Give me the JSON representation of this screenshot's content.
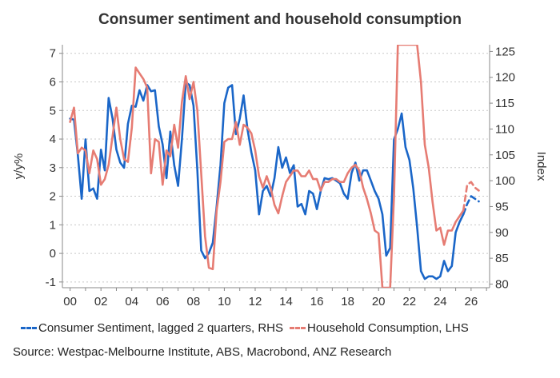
{
  "chart_data": {
    "type": "line",
    "title": "Consumer sentiment and household consumption",
    "ylabel_left": "y/y%",
    "ylabel_right": "Index",
    "ylim_left": [
      -1.2,
      7.3
    ],
    "ylim_right": [
      79.3,
      126.3
    ],
    "xlim": [
      1999.5,
      2027.2
    ],
    "left_ticks": [
      -1,
      0,
      1,
      2,
      3,
      4,
      5,
      6,
      7
    ],
    "right_ticks": [
      80,
      85,
      90,
      95,
      100,
      105,
      110,
      115,
      120,
      125
    ],
    "x_ticks": [
      2000,
      2002,
      2004,
      2006,
      2008,
      2010,
      2012,
      2014,
      2016,
      2018,
      2020,
      2022,
      2024,
      2026
    ],
    "x_tick_labels": [
      "00",
      "02",
      "04",
      "06",
      "08",
      "10",
      "12",
      "14",
      "16",
      "18",
      "20",
      "22",
      "24",
      "26"
    ],
    "grid": "horizontal-dotted",
    "legend_position": "bottom",
    "series": [
      {
        "name": "Consumer Sentiment, lagged 2 quarters, RHS",
        "axis": "right",
        "color": "#1a66c8",
        "x": [
          2000.0,
          2000.25,
          2000.5,
          2000.75,
          2001.0,
          2001.25,
          2001.5,
          2001.75,
          2002.0,
          2002.25,
          2002.5,
          2002.75,
          2003.0,
          2003.25,
          2003.5,
          2003.75,
          2004.0,
          2004.25,
          2004.5,
          2004.75,
          2005.0,
          2005.25,
          2005.5,
          2005.75,
          2006.0,
          2006.25,
          2006.5,
          2006.75,
          2007.0,
          2007.25,
          2007.5,
          2007.75,
          2008.0,
          2008.25,
          2008.5,
          2008.75,
          2009.0,
          2009.25,
          2009.5,
          2009.75,
          2010.0,
          2010.25,
          2010.5,
          2010.75,
          2011.0,
          2011.25,
          2011.5,
          2011.75,
          2012.0,
          2012.25,
          2012.5,
          2012.75,
          2013.0,
          2013.25,
          2013.5,
          2013.75,
          2014.0,
          2014.25,
          2014.5,
          2014.75,
          2015.0,
          2015.25,
          2015.5,
          2015.75,
          2016.0,
          2016.25,
          2016.5,
          2016.75,
          2017.0,
          2017.25,
          2017.5,
          2017.75,
          2018.0,
          2018.25,
          2018.5,
          2018.75,
          2019.0,
          2019.25,
          2019.5,
          2019.75,
          2020.0,
          2020.25,
          2020.5,
          2020.75,
          2021.0,
          2021.25,
          2021.5,
          2021.75,
          2022.0,
          2022.25,
          2022.5,
          2022.75,
          2023.0,
          2023.25,
          2023.5,
          2023.75,
          2024.0,
          2024.25,
          2024.5,
          2024.75,
          2025.0,
          2025.25,
          2025.5
        ],
        "values": [
          112,
          111.8,
          105,
          96.5,
          108,
          98,
          98.5,
          96.5,
          106,
          102,
          116,
          112,
          106,
          103.5,
          102.5,
          111,
          114.5,
          114.3,
          117.5,
          115.5,
          118.5,
          117.3,
          117.5,
          110.5,
          107,
          100.5,
          109.5,
          103,
          99,
          108,
          119,
          118.5,
          114.5,
          102,
          86.5,
          85,
          86,
          88,
          95,
          103,
          115,
          118,
          118.5,
          109,
          112,
          116.5,
          110,
          105.5,
          102,
          93.5,
          98,
          99,
          97,
          100.5,
          106.5,
          102.5,
          104.5,
          101.5,
          103,
          95,
          95.5,
          93.5,
          98,
          97.5,
          94.5,
          98,
          100.5,
          100.3,
          100.5,
          100,
          99.5,
          97.5,
          96.5,
          101.5,
          103.5,
          100,
          102,
          102,
          100,
          98,
          96.5,
          93.5,
          85.5,
          87,
          108,
          110,
          113,
          106.5,
          104,
          98.5,
          91,
          82.5,
          81,
          81.5,
          81.5,
          81,
          81.5,
          84.5,
          82.5,
          83.5,
          90,
          92,
          93.5
        ]
      },
      {
        "name": "Consumer Sentiment, lagged 2 quarters, RHS",
        "axis": "right",
        "color": "#1a66c8",
        "dashed": true,
        "x": [
          2025.5,
          2025.75,
          2026.0,
          2026.25,
          2026.5
        ],
        "values": [
          93.5,
          95.5,
          97,
          96.5,
          96
        ]
      },
      {
        "name": "Household Consumption, LHS",
        "axis": "left",
        "color": "#e67c73",
        "x": [
          2000.0,
          2000.25,
          2000.5,
          2000.75,
          2001.0,
          2001.25,
          2001.5,
          2001.75,
          2002.0,
          2002.25,
          2002.5,
          2002.75,
          2003.0,
          2003.25,
          2003.5,
          2003.75,
          2004.0,
          2004.25,
          2004.5,
          2004.75,
          2005.0,
          2005.25,
          2005.5,
          2005.75,
          2006.0,
          2006.25,
          2006.5,
          2006.75,
          2007.0,
          2007.25,
          2007.5,
          2007.75,
          2008.0,
          2008.25,
          2008.5,
          2008.75,
          2009.0,
          2009.25,
          2009.5,
          2009.75,
          2010.0,
          2010.25,
          2010.5,
          2010.75,
          2011.0,
          2011.25,
          2011.5,
          2011.75,
          2012.0,
          2012.25,
          2012.5,
          2012.75,
          2013.0,
          2013.25,
          2013.5,
          2013.75,
          2014.0,
          2014.25,
          2014.5,
          2014.75,
          2015.0,
          2015.25,
          2015.5,
          2015.75,
          2016.0,
          2016.25,
          2016.5,
          2016.75,
          2017.0,
          2017.25,
          2017.5,
          2017.75,
          2018.0,
          2018.25,
          2018.5,
          2018.75,
          2019.0,
          2019.25,
          2019.5,
          2019.75,
          2020.0,
          2020.25,
          2020.5,
          2020.75,
          2021.0,
          2021.25,
          2021.5,
          2021.75,
          2022.0,
          2022.25,
          2022.5,
          2022.75,
          2023.0,
          2023.25,
          2023.5,
          2023.75,
          2024.0,
          2024.25,
          2024.5,
          2024.75,
          2025.0,
          2025.25,
          2025.5
        ],
        "values": [
          4.6,
          5.1,
          3.5,
          3.7,
          3.6,
          2.8,
          3.6,
          3.3,
          2.4,
          2.6,
          3.1,
          4.1,
          5.1,
          4.0,
          3.3,
          3.2,
          4.4,
          6.5,
          6.3,
          6.1,
          5.8,
          2.8,
          4.0,
          3.9,
          2.4,
          3.6,
          3.4,
          4.5,
          3.7,
          5.3,
          6.2,
          5.4,
          6.0,
          5.0,
          2.8,
          0.6,
          -0.5,
          -0.55,
          1.5,
          2.5,
          3.9,
          4.0,
          4.0,
          4.6,
          3.8,
          4.5,
          4.4,
          4.2,
          3.6,
          2.7,
          2.3,
          2.7,
          2.3,
          1.7,
          1.4,
          2.0,
          2.5,
          2.7,
          2.9,
          2.9,
          2.7,
          2.7,
          2.9,
          2.6,
          2.6,
          2.2,
          2.5,
          2.5,
          2.6,
          2.6,
          2.5,
          2.5,
          2.8,
          3.0,
          3.1,
          2.9,
          2.3,
          1.9,
          1.4,
          0.8,
          0.7,
          -1.2,
          -1.2,
          -1.2,
          2.0,
          7.3,
          7.3,
          7.3,
          7.3,
          7.3,
          7.3,
          6.0,
          3.8,
          3.0,
          1.8,
          0.8,
          0.9,
          0.3,
          0.8,
          0.8,
          1.1,
          1.3,
          1.5
        ]
      },
      {
        "name": "Household Consumption, LHS",
        "axis": "left",
        "color": "#e67c73",
        "dashed": true,
        "x": [
          2025.5,
          2025.75,
          2026.0,
          2026.25,
          2026.5
        ],
        "values": [
          1.5,
          2.4,
          2.5,
          2.3,
          2.2
        ]
      }
    ],
    "legend": [
      {
        "label": "Consumer Sentiment, lagged 2 quarters, RHS",
        "color": "#1a66c8"
      },
      {
        "label": "Household Consumption, LHS",
        "color": "#e67c73"
      }
    ],
    "source": "Source: Westpac-Melbourne Institute, ABS, Macrobond, ANZ Research"
  }
}
